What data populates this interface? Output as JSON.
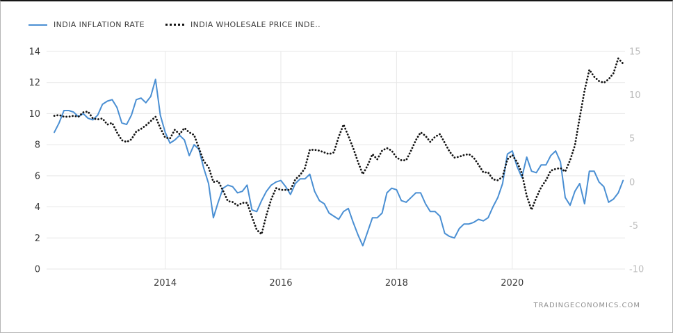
{
  "legend": [
    {
      "label": "INDIA INFLATION RATE",
      "color": "#4a8fd3",
      "style": "solid"
    },
    {
      "label": "INDIA WHOLESALE PRICE INDE..",
      "color": "#141414",
      "style": "dotted"
    }
  ],
  "footer": {
    "watermark": "TRADINGECONOMICS.COM"
  },
  "colors": {
    "inflation_line": "#4a8fd3",
    "wpi_line": "#141414",
    "grid": "#e7e7e7",
    "left_axis_text": "#3c3c3c",
    "right_axis_text": "#bdbdbd",
    "year_text": "#3c3c3c",
    "watermark_text": "#8f8f8f"
  },
  "chart_data": {
    "type": "line",
    "title": "",
    "x_start": 2012.0833,
    "x_step": 0.083333,
    "x_axis": {
      "ticks": [
        2014,
        2016,
        2018,
        2020
      ],
      "range": [
        2011.95,
        2021.95
      ]
    },
    "left_axis": {
      "min": 0,
      "max": 14,
      "ticks": [
        0,
        2,
        4,
        6,
        8,
        10,
        12,
        14
      ]
    },
    "right_axis": {
      "min": -10,
      "max": 15,
      "ticks": [
        -10,
        -5,
        0,
        5,
        10,
        15
      ]
    },
    "grid": true,
    "legend_position": "top-left",
    "series": [
      {
        "name": "INDIA INFLATION RATE",
        "axis": "left",
        "style": "solid",
        "color": "#4a8fd3",
        "values": [
          8.8,
          9.4,
          10.2,
          10.2,
          10.1,
          9.8,
          10.0,
          9.7,
          9.6,
          9.9,
          10.6,
          10.8,
          10.9,
          10.4,
          9.4,
          9.3,
          9.9,
          10.9,
          11.0,
          10.7,
          11.1,
          12.2,
          9.9,
          8.8,
          8.1,
          8.3,
          8.6,
          8.3,
          7.3,
          8.0,
          7.7,
          6.5,
          5.5,
          3.3,
          4.3,
          5.2,
          5.4,
          5.3,
          4.9,
          5.0,
          5.4,
          3.8,
          3.7,
          4.4,
          5.0,
          5.4,
          5.6,
          5.7,
          5.3,
          4.8,
          5.5,
          5.8,
          5.8,
          6.1,
          5.0,
          4.4,
          4.2,
          3.6,
          3.4,
          3.2,
          3.7,
          3.9,
          3.0,
          2.2,
          1.5,
          2.4,
          3.3,
          3.3,
          3.6,
          4.9,
          5.2,
          5.1,
          4.4,
          4.3,
          4.6,
          4.9,
          4.9,
          4.2,
          3.7,
          3.7,
          3.4,
          2.3,
          2.1,
          2.0,
          2.6,
          2.9,
          2.9,
          3.0,
          3.2,
          3.1,
          3.3,
          4.0,
          4.6,
          5.5,
          7.4,
          7.6,
          6.6,
          5.9,
          7.2,
          6.3,
          6.2,
          6.7,
          6.7,
          7.3,
          7.6,
          6.9,
          4.6,
          4.1,
          5.0,
          5.5,
          4.2,
          6.3,
          6.3,
          5.6,
          5.3,
          4.3,
          4.5,
          4.9,
          5.7
        ]
      },
      {
        "name": "INDIA WHOLESALE PRICE INDEX",
        "axis": "right",
        "style": "dotted",
        "color": "#141414",
        "values": [
          7.6,
          7.7,
          7.5,
          7.5,
          7.6,
          7.5,
          8.0,
          8.1,
          7.3,
          7.2,
          7.3,
          6.6,
          6.8,
          5.7,
          4.8,
          4.6,
          4.9,
          5.8,
          6.1,
          6.5,
          7.0,
          7.5,
          6.2,
          5.1,
          5.0,
          6.0,
          5.5,
          6.2,
          5.7,
          5.4,
          3.9,
          2.4,
          1.7,
          0.0,
          0.1,
          -1.0,
          -2.2,
          -2.3,
          -2.7,
          -2.4,
          -2.4,
          -4.0,
          -5.5,
          -6.0,
          -3.8,
          -2.0,
          -0.7,
          -0.9,
          -0.9,
          -0.9,
          0.3,
          0.8,
          1.6,
          3.7,
          3.7,
          3.6,
          3.4,
          3.2,
          3.4,
          5.2,
          6.6,
          5.3,
          3.9,
          2.3,
          0.9,
          1.9,
          3.2,
          2.6,
          3.6,
          3.9,
          3.6,
          2.8,
          2.5,
          2.5,
          3.6,
          4.8,
          5.7,
          5.3,
          4.6,
          5.2,
          5.5,
          4.5,
          3.5,
          2.8,
          2.9,
          3.1,
          3.2,
          2.8,
          2.0,
          1.1,
          1.1,
          0.3,
          0.2,
          0.6,
          2.6,
          3.1,
          2.3,
          1.0,
          -1.6,
          -3.2,
          -1.8,
          -0.6,
          0.2,
          1.3,
          1.5,
          1.6,
          1.2,
          2.5,
          4.2,
          7.4,
          10.5,
          12.9,
          12.1,
          11.6,
          11.4,
          11.8,
          12.5,
          14.2,
          13.6
        ]
      }
    ]
  }
}
